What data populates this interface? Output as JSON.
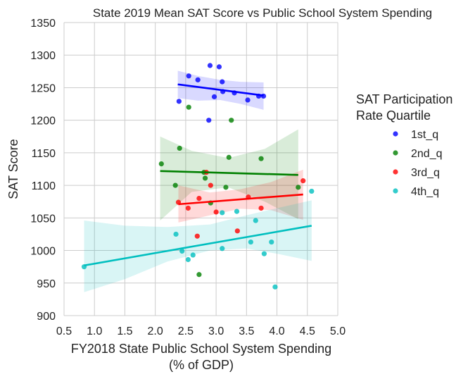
{
  "chart_data": {
    "type": "scatter",
    "title": "State 2019 Mean SAT Score vs Public School System Spending",
    "xlabel": [
      "FY2018 State Public School System Spending",
      "(% of GDP)"
    ],
    "ylabel": "SAT Score",
    "xlim": [
      0.5,
      5.0
    ],
    "ylim": [
      900,
      1350
    ],
    "xticks": [
      0.5,
      1.0,
      1.5,
      2.0,
      2.5,
      3.0,
      3.5,
      4.0,
      4.5,
      5.0
    ],
    "xtick_labels": [
      "0.5",
      "1.0",
      "1.5",
      "2.0",
      "2.5",
      "3.0",
      "3.5",
      "4.0",
      "4.5",
      "5.0"
    ],
    "yticks": [
      900,
      950,
      1000,
      1050,
      1100,
      1150,
      1200,
      1250,
      1300,
      1350
    ],
    "ytick_labels": [
      "900",
      "950",
      "1000",
      "1050",
      "1100",
      "1150",
      "1200",
      "1250",
      "1300",
      "1350"
    ],
    "grid": true,
    "legend": {
      "title": [
        "SAT Participation",
        "Rate Quartile"
      ],
      "placement": "right"
    },
    "series": [
      {
        "name": "1st_q",
        "color": "#0000ff",
        "points": [
          [
            2.39,
            1229
          ],
          [
            2.55,
            1268
          ],
          [
            2.7,
            1262
          ],
          [
            2.88,
            1200
          ],
          [
            2.9,
            1284
          ],
          [
            2.97,
            1236
          ],
          [
            3.05,
            1282
          ],
          [
            3.1,
            1259
          ],
          [
            3.11,
            1244
          ],
          [
            3.3,
            1242
          ],
          [
            3.52,
            1231
          ],
          [
            3.7,
            1237
          ],
          [
            3.78,
            1237
          ]
        ],
        "fit": {
          "x": [
            2.37,
            3.78
          ],
          "y": [
            1255,
            1238
          ]
        },
        "band": {
          "x": [
            2.37,
            2.7,
            3.07,
            3.4,
            3.78
          ],
          "upper": [
            1276,
            1268,
            1262,
            1259,
            1258
          ],
          "lower": [
            1234,
            1230,
            1231,
            1225,
            1216
          ]
        }
      },
      {
        "name": "2nd_q",
        "color": "#008000",
        "points": [
          [
            2.1,
            1133
          ],
          [
            2.33,
            1100
          ],
          [
            2.4,
            1157
          ],
          [
            2.55,
            1220
          ],
          [
            2.72,
            963
          ],
          [
            2.8,
            1120
          ],
          [
            2.82,
            1111
          ],
          [
            2.91,
            1073
          ],
          [
            3.16,
            1097
          ],
          [
            3.21,
            1143
          ],
          [
            3.25,
            1200
          ],
          [
            3.74,
            1141
          ],
          [
            4.35,
            1097
          ]
        ],
        "fit": {
          "x": [
            2.08,
            4.35
          ],
          "y": [
            1122,
            1116
          ]
        },
        "band": {
          "x": [
            2.08,
            2.6,
            3.2,
            3.8,
            4.35
          ],
          "upper": [
            1175,
            1153,
            1142,
            1156,
            1186
          ],
          "lower": [
            1046,
            1090,
            1097,
            1075,
            1048
          ]
        }
      },
      {
        "name": "3rd_q",
        "color": "#ff0000",
        "points": [
          [
            2.38,
            1074
          ],
          [
            2.54,
            1065
          ],
          [
            2.69,
            1022
          ],
          [
            2.72,
            1080
          ],
          [
            2.84,
            1120
          ],
          [
            2.91,
            1100
          ],
          [
            3.0,
            1059
          ],
          [
            3.35,
            1030
          ],
          [
            3.53,
            1082
          ],
          [
            3.74,
            1065
          ],
          [
            4.43,
            1107
          ]
        ],
        "fit": {
          "x": [
            2.38,
            4.43
          ],
          "y": [
            1071,
            1086
          ]
        },
        "band": {
          "x": [
            2.38,
            2.9,
            3.4,
            3.9,
            4.43
          ],
          "upper": [
            1100,
            1089,
            1094,
            1105,
            1124
          ],
          "lower": [
            1043,
            1054,
            1064,
            1062,
            1047
          ]
        }
      },
      {
        "name": "4th_q",
        "color": "#00bfbf",
        "points": [
          [
            0.83,
            975
          ],
          [
            2.34,
            1025
          ],
          [
            2.44,
            999
          ],
          [
            2.54,
            986
          ],
          [
            2.62,
            993
          ],
          [
            3.1,
            1003
          ],
          [
            3.1,
            1058
          ],
          [
            3.34,
            1060
          ],
          [
            3.57,
            1013
          ],
          [
            3.65,
            1046
          ],
          [
            3.79,
            995
          ],
          [
            3.91,
            1013
          ],
          [
            3.97,
            944
          ],
          [
            4.57,
            1091
          ]
        ],
        "fit": {
          "x": [
            0.83,
            4.57
          ],
          "y": [
            977,
            1038
          ]
        },
        "band": {
          "x": [
            0.83,
            1.5,
            2.2,
            2.9,
            3.5,
            4.0,
            4.57
          ],
          "upper": [
            1046,
            1038,
            1036,
            1040,
            1054,
            1065,
            1077
          ],
          "lower": [
            936,
            956,
            983,
            1000,
            1003,
            995,
            984
          ]
        }
      }
    ]
  }
}
